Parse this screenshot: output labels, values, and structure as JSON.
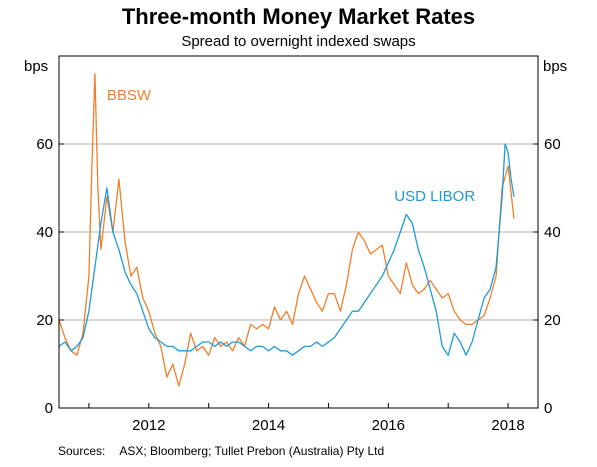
{
  "header": {
    "title": "Three-month Money Market Rates",
    "subtitle": "Spread to overnight indexed swaps"
  },
  "footer": {
    "sources_label": "Sources:",
    "sources_text": "ASX; Bloomberg; Tullet Prebon (Australia) Pty Ltd"
  },
  "chart_data": {
    "type": "line",
    "title": "Three-month Money Market Rates",
    "subtitle": "Spread to overnight indexed swaps",
    "y_unit_left": "bps",
    "y_unit_right": "bps",
    "ylim": [
      0,
      80
    ],
    "yticks": [
      0,
      20,
      40,
      60
    ],
    "xlim": [
      2010.5,
      2018.5
    ],
    "xticks": [
      {
        "value": 2012.0,
        "label": "2012"
      },
      {
        "value": 2014.0,
        "label": "2014"
      },
      {
        "value": 2016.0,
        "label": "2016"
      },
      {
        "value": 2018.0,
        "label": "2018"
      }
    ],
    "grid": true,
    "colors": {
      "BBSW": "#f07f2b",
      "USD LIBOR": "#1e9ad6"
    },
    "series": [
      {
        "name": "BBSW",
        "x": [
          2010.5,
          2010.6,
          2010.7,
          2010.8,
          2010.9,
          2011.0,
          2011.05,
          2011.1,
          2011.15,
          2011.2,
          2011.3,
          2011.4,
          2011.5,
          2011.6,
          2011.7,
          2011.8,
          2011.9,
          2012.0,
          2012.1,
          2012.2,
          2012.3,
          2012.4,
          2012.5,
          2012.6,
          2012.7,
          2012.8,
          2012.9,
          2013.0,
          2013.1,
          2013.2,
          2013.3,
          2013.4,
          2013.5,
          2013.6,
          2013.7,
          2013.8,
          2013.9,
          2014.0,
          2014.1,
          2014.2,
          2014.3,
          2014.4,
          2014.5,
          2014.6,
          2014.7,
          2014.8,
          2014.9,
          2015.0,
          2015.1,
          2015.2,
          2015.3,
          2015.4,
          2015.5,
          2015.6,
          2015.7,
          2015.8,
          2015.9,
          2016.0,
          2016.1,
          2016.2,
          2016.3,
          2016.4,
          2016.5,
          2016.6,
          2016.7,
          2016.8,
          2016.9,
          2017.0,
          2017.1,
          2017.2,
          2017.3,
          2017.4,
          2017.5,
          2017.6,
          2017.7,
          2017.8,
          2017.9,
          2018.0,
          2018.1
        ],
        "values": [
          20,
          16,
          13,
          12,
          17,
          30,
          55,
          76,
          50,
          36,
          48,
          40,
          52,
          38,
          30,
          32,
          25,
          22,
          17,
          14,
          7,
          10,
          5,
          10,
          17,
          13,
          14,
          12,
          16,
          14,
          15,
          13,
          16,
          14,
          19,
          18,
          19,
          18,
          23,
          20,
          22,
          19,
          26,
          30,
          27,
          24,
          22,
          26,
          26,
          22,
          28,
          36,
          40,
          38,
          35,
          36,
          37,
          30,
          28,
          26,
          33,
          28,
          26,
          27,
          29,
          27,
          25,
          26,
          22,
          20,
          19,
          19,
          20,
          21,
          25,
          30,
          50,
          55,
          43
        ]
      },
      {
        "name": "USD LIBOR",
        "x": [
          2010.5,
          2010.6,
          2010.7,
          2010.8,
          2010.9,
          2011.0,
          2011.1,
          2011.2,
          2011.3,
          2011.4,
          2011.5,
          2011.6,
          2011.7,
          2011.8,
          2011.9,
          2012.0,
          2012.1,
          2012.2,
          2012.3,
          2012.4,
          2012.5,
          2012.6,
          2012.7,
          2012.8,
          2012.9,
          2013.0,
          2013.1,
          2013.2,
          2013.3,
          2013.4,
          2013.5,
          2013.6,
          2013.7,
          2013.8,
          2013.9,
          2014.0,
          2014.1,
          2014.2,
          2014.3,
          2014.4,
          2014.5,
          2014.6,
          2014.7,
          2014.8,
          2014.9,
          2015.0,
          2015.1,
          2015.2,
          2015.3,
          2015.4,
          2015.5,
          2015.6,
          2015.7,
          2015.8,
          2015.9,
          2016.0,
          2016.1,
          2016.2,
          2016.3,
          2016.4,
          2016.5,
          2016.6,
          2016.7,
          2016.8,
          2016.9,
          2017.0,
          2017.1,
          2017.2,
          2017.3,
          2017.4,
          2017.5,
          2017.6,
          2017.7,
          2017.8,
          2017.9,
          2017.95,
          2018.0,
          2018.05,
          2018.1
        ],
        "values": [
          14,
          15,
          13,
          14,
          16,
          22,
          32,
          42,
          50,
          40,
          36,
          31,
          28,
          26,
          22,
          18,
          16,
          15,
          14,
          14,
          13,
          13,
          13,
          14,
          15,
          15,
          14,
          15,
          14,
          15,
          15,
          14,
          13,
          14,
          14,
          13,
          14,
          13,
          13,
          12,
          13,
          14,
          14,
          15,
          14,
          15,
          16,
          18,
          20,
          22,
          22,
          24,
          26,
          28,
          30,
          33,
          36,
          40,
          44,
          42,
          36,
          32,
          27,
          22,
          14,
          12,
          17,
          15,
          12,
          15,
          20,
          25,
          27,
          32,
          48,
          60,
          58,
          52,
          48
        ]
      }
    ],
    "annotations": [
      {
        "text": "BBSW",
        "series": "BBSW",
        "x": 2011.3,
        "y": 70
      },
      {
        "text": "USD LIBOR",
        "series": "USD LIBOR",
        "x": 2016.1,
        "y": 47
      }
    ]
  }
}
